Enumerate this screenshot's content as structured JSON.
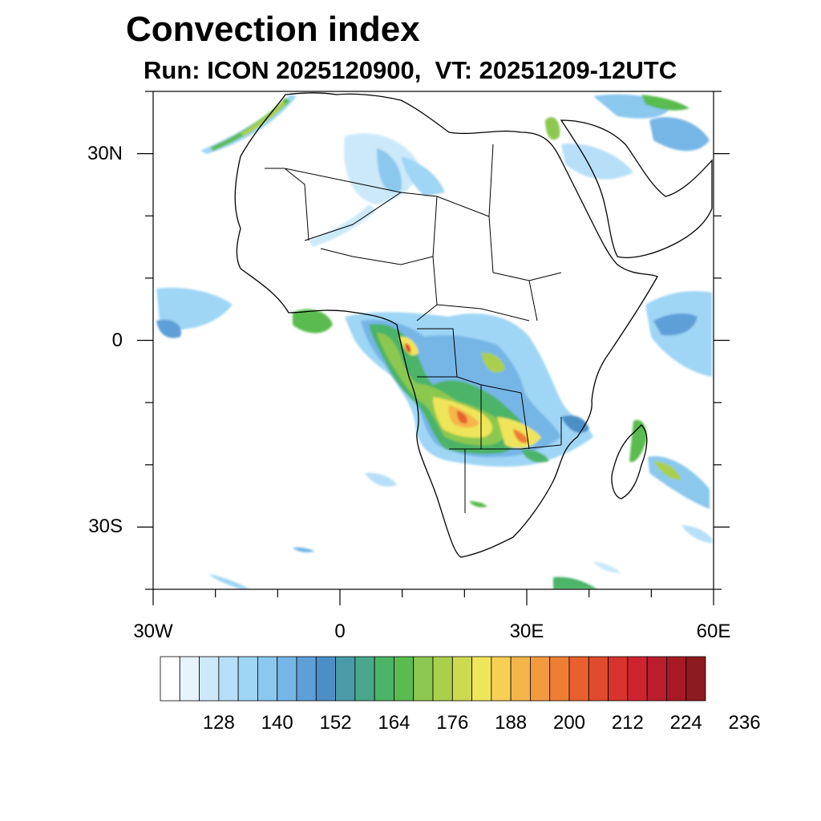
{
  "title": "Convection index",
  "subtitle": "Run: ICON 2025120900,  VT: 20251209-12UTC",
  "map": {
    "projection": "equirectangular",
    "lon_range": [
      -30,
      60
    ],
    "lat_range": [
      -40,
      40
    ],
    "lat_ticks": [
      {
        "value": 30,
        "label": "30N"
      },
      {
        "value": 0,
        "label": "0"
      },
      {
        "value": -30,
        "label": "30S"
      }
    ],
    "lon_ticks": [
      {
        "value": -30,
        "label": "30W"
      },
      {
        "value": 0,
        "label": "0"
      },
      {
        "value": 30,
        "label": "30E"
      },
      {
        "value": 60,
        "label": "60E"
      }
    ],
    "field": "Convection index"
  },
  "colorbar": {
    "colors": [
      "#ffffff",
      "#e8f4fc",
      "#cce9f9",
      "#b7e0f8",
      "#9fd6f5",
      "#8ac8ee",
      "#76b6e6",
      "#5f9fd8",
      "#4c8fc8",
      "#4a9ba8",
      "#49a88a",
      "#4cb467",
      "#5abb4f",
      "#8cc74f",
      "#a9cf4d",
      "#cdd94f",
      "#efe55a",
      "#f7cf55",
      "#f6b54a",
      "#f49a3e",
      "#ef7e35",
      "#e8602f",
      "#e04a2d",
      "#d8332e",
      "#cc2530",
      "#bb1d2c",
      "#a61a25",
      "#8e1a1f"
    ],
    "labels": [
      "128",
      "140",
      "152",
      "164",
      "176",
      "188",
      "200",
      "212",
      "224",
      "236"
    ]
  }
}
